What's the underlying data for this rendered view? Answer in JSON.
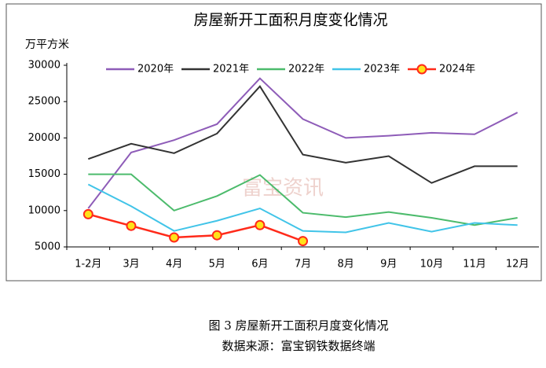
{
  "chart_data": {
    "type": "line",
    "title": "房屋新开工面积月度变化情况",
    "y_label": "万平方米",
    "watermark": "富宝资讯",
    "categories": [
      "1-2月",
      "3月",
      "4月",
      "5月",
      "6月",
      "7月",
      "8月",
      "9月",
      "10月",
      "11月",
      "12月"
    ],
    "series": [
      {
        "name": "2020年",
        "color": "#8e5cb8",
        "values": [
          10300,
          18000,
          19700,
          21900,
          28200,
          22600,
          20000,
          20300,
          20700,
          20500,
          23500
        ]
      },
      {
        "name": "2021年",
        "color": "#333333",
        "values": [
          17100,
          19200,
          17900,
          20600,
          27100,
          17700,
          16600,
          17500,
          13800,
          16100,
          16100
        ]
      },
      {
        "name": "2022年",
        "color": "#4cbb6c",
        "values": [
          15000,
          15000,
          10000,
          12000,
          14900,
          9700,
          9100,
          9800,
          9000,
          8000,
          9000
        ]
      },
      {
        "name": "2023年",
        "color": "#41c4e8",
        "values": [
          13600,
          10600,
          7200,
          8600,
          10300,
          7200,
          7000,
          8300,
          7100,
          8300,
          8000
        ]
      },
      {
        "name": "2024年",
        "color": "#ff2a1a",
        "marker": true,
        "values": [
          9500,
          7900,
          6300,
          6600,
          8000,
          5800,
          null,
          null,
          null,
          null,
          null
        ]
      }
    ],
    "ylim": [
      5000,
      30000
    ],
    "yticks": [
      5000,
      10000,
      15000,
      20000,
      25000,
      30000
    ],
    "grid": false,
    "legend": "top"
  },
  "caption": {
    "figure": "图 3 房屋新开工面积月度变化情况",
    "source": "数据来源：富宝钢铁数据终端"
  }
}
